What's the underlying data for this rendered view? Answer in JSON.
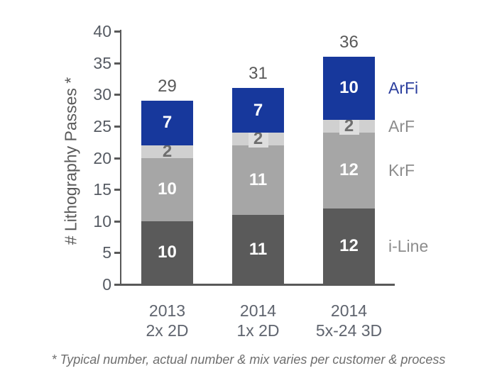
{
  "chart_data": {
    "type": "bar",
    "stacked": true,
    "title": "",
    "ylabel": "# Lithography Passes *",
    "ylim": [
      0,
      40
    ],
    "ytick_step": 5,
    "yticks": [
      0,
      5,
      10,
      15,
      20,
      25,
      30,
      35,
      40
    ],
    "categories": [
      {
        "line1": "2013",
        "line2": "2x 2D"
      },
      {
        "line1": "2014",
        "line2": "1x 2D"
      },
      {
        "line1": "2014",
        "line2": "5x-24 3D"
      }
    ],
    "series": [
      {
        "name": "i-Line",
        "color": "#5a5a5a",
        "label_color": "#ffffff",
        "values": [
          10,
          11,
          12
        ]
      },
      {
        "name": "KrF",
        "color": "#a6a6a6",
        "label_color": "#ffffff",
        "values": [
          10,
          11,
          12
        ]
      },
      {
        "name": "ArF",
        "color": "#d0d0d0",
        "label_color": "#6e6e6e",
        "label_box_color": "#dedede",
        "label_boxed": [
          false,
          true,
          true
        ],
        "values": [
          2,
          2,
          2
        ]
      },
      {
        "name": "ArFi",
        "color": "#17389c",
        "label_color": "#ffffff",
        "values": [
          7,
          7,
          10
        ]
      }
    ],
    "totals": [
      29,
      31,
      36
    ],
    "legend": [
      {
        "label": "ArFi",
        "color": "#2c3f9e"
      },
      {
        "label": "ArF",
        "color": "#8c8c8c"
      },
      {
        "label": "KrF",
        "color": "#8c8c8c"
      },
      {
        "label": "i-Line",
        "color": "#8c8c8c"
      }
    ],
    "legend_position": "right",
    "grid": false,
    "footnote": "* Typical number, actual number & mix varies per customer & process",
    "colors": {
      "axis": "#595959",
      "tick_label": "#565b63",
      "total_label": "#595959",
      "category_label": "#5f646e",
      "ylabel": "#595959",
      "footnote": "#6e6e6e"
    }
  }
}
